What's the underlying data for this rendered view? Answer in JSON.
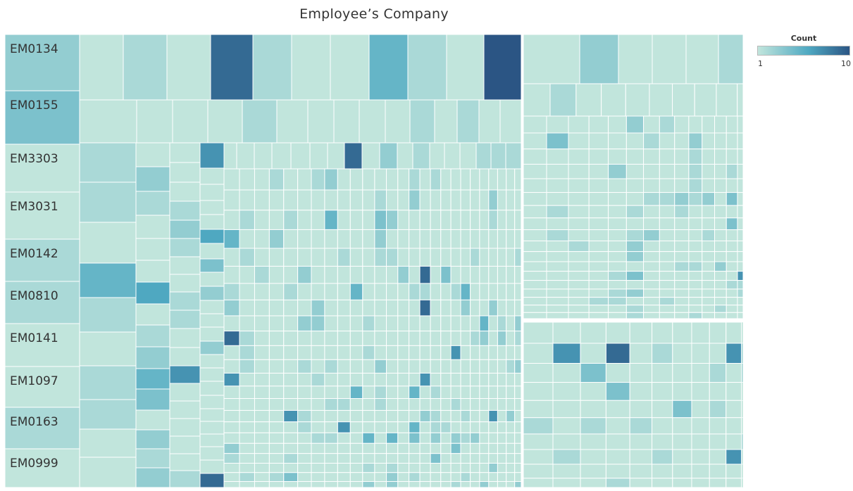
{
  "chart_data": {
    "type": "treemap",
    "title": "Employee’s Company",
    "legend": {
      "title": "Count",
      "min_label": "1",
      "max_label": "10",
      "placement": "top-right",
      "color_low": "#c1e5dc",
      "color_mid": "#4fa9c2",
      "color_high": "#2b5584"
    },
    "row_labels": [
      "EM0134",
      "EM0155",
      "EM3303",
      "EM3031",
      "EM0142",
      "EM0810",
      "EM0141",
      "EM1097",
      "EM0163",
      "EM0999"
    ],
    "top_row_values": [
      1,
      2,
      1,
      9,
      2,
      1,
      1,
      5,
      2,
      1,
      10
    ],
    "second_row_values": [
      1,
      1,
      1,
      1,
      2,
      1,
      1,
      1,
      1,
      1,
      2,
      1,
      2,
      1,
      1
    ]
  }
}
